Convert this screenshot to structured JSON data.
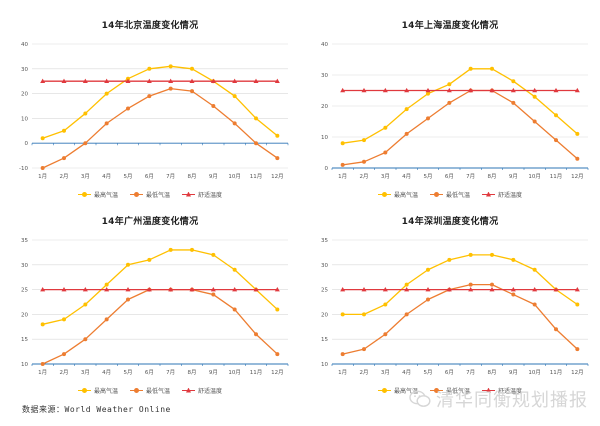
{
  "chart_data": [
    {
      "type": "line",
      "title": "14年北京温度变化情况",
      "categories": [
        "1月",
        "2月",
        "3月",
        "4月",
        "5月",
        "6月",
        "7月",
        "8月",
        "9月",
        "10月",
        "11月",
        "12月"
      ],
      "ylim": [
        -10,
        40
      ],
      "yticks": [
        -10,
        0,
        10,
        20,
        30,
        40
      ],
      "ytick_labels": [
        "-10",
        "0",
        "10",
        "20",
        "30",
        "40"
      ],
      "grid": true,
      "legend_position": "bottom",
      "series": [
        {
          "name": "最高气温",
          "color": "#ffc000",
          "marker": "circle",
          "values": [
            2,
            5,
            12,
            20,
            26,
            30,
            31,
            30,
            25,
            19,
            10,
            3
          ]
        },
        {
          "name": "最低气温",
          "color": "#ed7d31",
          "marker": "circle",
          "values": [
            -10,
            -6,
            0,
            8,
            14,
            19,
            22,
            21,
            15,
            8,
            0,
            -6
          ]
        },
        {
          "name": "舒适温度",
          "color": "#e0393e",
          "marker": "triangle",
          "values": [
            25,
            25,
            25,
            25,
            25,
            25,
            25,
            25,
            25,
            25,
            25,
            25
          ]
        }
      ]
    },
    {
      "type": "line",
      "title": "14年上海温度变化情况",
      "categories": [
        "1月",
        "2月",
        "3月",
        "4月",
        "5月",
        "6月",
        "7月",
        "8月",
        "9月",
        "10月",
        "11月",
        "12月"
      ],
      "ylim": [
        0,
        40
      ],
      "yticks": [
        0,
        10,
        20,
        30,
        40
      ],
      "ytick_labels": [
        "0",
        "10",
        "20",
        "30",
        "40"
      ],
      "grid": true,
      "legend_position": "bottom",
      "series": [
        {
          "name": "最高气温",
          "color": "#ffc000",
          "marker": "circle",
          "values": [
            8,
            9,
            13,
            19,
            24,
            27,
            32,
            32,
            28,
            23,
            17,
            11
          ]
        },
        {
          "name": "最低气温",
          "color": "#ed7d31",
          "marker": "circle",
          "values": [
            1,
            2,
            5,
            11,
            16,
            21,
            25,
            25,
            21,
            15,
            9,
            3
          ]
        },
        {
          "name": "舒适温度",
          "color": "#e0393e",
          "marker": "triangle",
          "values": [
            25,
            25,
            25,
            25,
            25,
            25,
            25,
            25,
            25,
            25,
            25,
            25
          ]
        }
      ]
    },
    {
      "type": "line",
      "title": "14年广州温度变化情况",
      "categories": [
        "1月",
        "2月",
        "3月",
        "4月",
        "5月",
        "6月",
        "7月",
        "8月",
        "9月",
        "10月",
        "11月",
        "12月"
      ],
      "ylim": [
        10,
        35
      ],
      "yticks": [
        10,
        15,
        20,
        25,
        30,
        35
      ],
      "ytick_labels": [
        "10",
        "15",
        "20",
        "25",
        "30",
        "35"
      ],
      "grid": true,
      "legend_position": "bottom",
      "series": [
        {
          "name": "最高气温",
          "color": "#ffc000",
          "marker": "circle",
          "values": [
            18,
            19,
            22,
            26,
            30,
            31,
            33,
            33,
            32,
            29,
            25,
            21
          ]
        },
        {
          "name": "最低气温",
          "color": "#ed7d31",
          "marker": "circle",
          "values": [
            10,
            12,
            15,
            19,
            23,
            25,
            25,
            25,
            24,
            21,
            16,
            12
          ]
        },
        {
          "name": "舒适温度",
          "color": "#e0393e",
          "marker": "triangle",
          "values": [
            25,
            25,
            25,
            25,
            25,
            25,
            25,
            25,
            25,
            25,
            25,
            25
          ]
        }
      ]
    },
    {
      "type": "line",
      "title": "14年深圳温度变化情况",
      "categories": [
        "1月",
        "2月",
        "3月",
        "4月",
        "5月",
        "6月",
        "7月",
        "8月",
        "9月",
        "10月",
        "11月",
        "12月"
      ],
      "ylim": [
        10,
        35
      ],
      "yticks": [
        10,
        15,
        20,
        25,
        30,
        35
      ],
      "ytick_labels": [
        "10",
        "15",
        "20",
        "25",
        "30",
        "35"
      ],
      "grid": true,
      "legend_position": "bottom",
      "series": [
        {
          "name": "最高气温",
          "color": "#ffc000",
          "marker": "circle",
          "values": [
            20,
            20,
            22,
            26,
            29,
            31,
            32,
            32,
            31,
            29,
            25,
            22
          ]
        },
        {
          "name": "最低气温",
          "color": "#ed7d31",
          "marker": "circle",
          "values": [
            12,
            13,
            16,
            20,
            23,
            25,
            26,
            26,
            24,
            22,
            17,
            13
          ]
        },
        {
          "name": "舒适温度",
          "color": "#e0393e",
          "marker": "triangle",
          "values": [
            25,
            25,
            25,
            25,
            25,
            25,
            25,
            25,
            25,
            25,
            25,
            25
          ]
        }
      ]
    }
  ],
  "source_text": "数据来源：World Weather Online",
  "watermark": {
    "text": "清华同衡规划播报",
    "icon": "wechat-icon"
  }
}
